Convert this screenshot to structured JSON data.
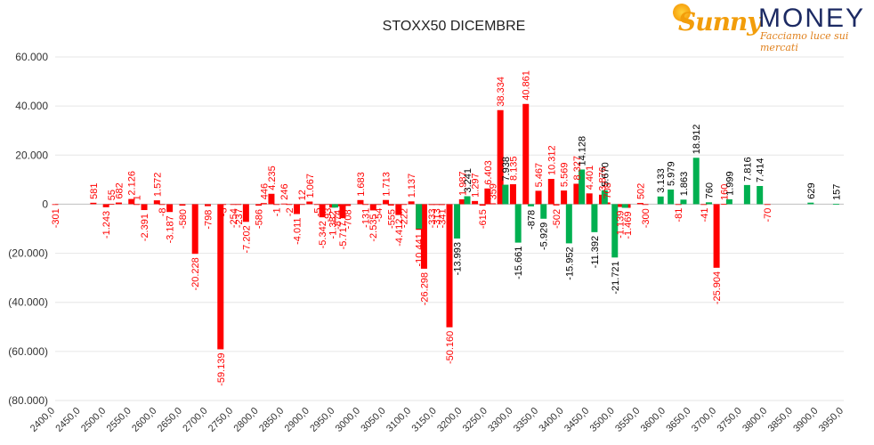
{
  "chart_data": {
    "type": "bar",
    "title": "STOXX50 DICEMBRE",
    "ylim": [
      -80000,
      60000
    ],
    "y_ticks": [
      "(80.000)",
      "(60.000)",
      "(40.000)",
      "(20.000)",
      "0",
      "20.000",
      "40.000",
      "60.000"
    ],
    "y_tick_values": [
      -80000,
      -60000,
      -40000,
      -20000,
      0,
      20000,
      40000,
      60000
    ],
    "x_tick_labels": [
      "2400,0",
      "2450,0",
      "2500,0",
      "2550,0",
      "2600,0",
      "2650,0",
      "2700,0",
      "2750,0",
      "2800,0",
      "2850,0",
      "2900,0",
      "2950,0",
      "3000,0",
      "3050,0",
      "3100,0",
      "3150,0",
      "3200,0",
      "3250,0",
      "3300,0",
      "3350,0",
      "3400,0",
      "3450,0",
      "3500,0",
      "3550,0",
      "3600,0",
      "3650,0",
      "3700,0",
      "3750,0",
      "3800,0",
      "3850,0",
      "3900,0",
      "3950,0"
    ],
    "grid": "horizontal",
    "legend": "none",
    "colors": {
      "red": "#ff0000",
      "green": "#00b050",
      "red_label": "#ff0000",
      "green_label": "#000000"
    },
    "series": [
      {
        "color": "red",
        "points": [
          {
            "x": 2400,
            "value": -301,
            "label": "-301"
          },
          {
            "x": 2475,
            "value": 581,
            "label": "581"
          },
          {
            "x": 2500,
            "value": -1243,
            "label": "-1.243"
          },
          {
            "x": 2510,
            "value": 55,
            "label": "55"
          },
          {
            "x": 2525,
            "value": 682,
            "label": "682"
          },
          {
            "x": 2550,
            "value": 2126,
            "label": "2.126"
          },
          {
            "x": 2560,
            "value": 1,
            "label": "1"
          },
          {
            "x": 2575,
            "value": -2391,
            "label": "-2.391"
          },
          {
            "x": 2600,
            "value": 1572,
            "label": "1.572"
          },
          {
            "x": 2610,
            "value": -8,
            "label": "-8"
          },
          {
            "x": 2625,
            "value": -3187,
            "label": "-3.187"
          },
          {
            "x": 2650,
            "value": -580,
            "label": "-580"
          },
          {
            "x": 2675,
            "value": -20228,
            "label": "-20.228"
          },
          {
            "x": 2700,
            "value": -798,
            "label": "-798"
          },
          {
            "x": 2725,
            "value": -59139,
            "label": "-59.139"
          },
          {
            "x": 2730,
            "value": -3,
            "label": "-3"
          },
          {
            "x": 2750,
            "value": -254,
            "label": "-254"
          },
          {
            "x": 2760,
            "value": -237,
            "label": "-237"
          },
          {
            "x": 2775,
            "value": -7202,
            "label": "-7.202"
          },
          {
            "x": 2800,
            "value": -586,
            "label": "-586"
          },
          {
            "x": 2810,
            "value": 446,
            "label": "446"
          },
          {
            "x": 2825,
            "value": 4235,
            "label": "4.235"
          },
          {
            "x": 2835,
            "value": -1,
            "label": "-1"
          },
          {
            "x": 2850,
            "value": 246,
            "label": "246"
          },
          {
            "x": 2860,
            "value": -2,
            "label": "-2"
          },
          {
            "x": 2875,
            "value": -4011,
            "label": "-4.011"
          },
          {
            "x": 2885,
            "value": 12,
            "label": "12"
          },
          {
            "x": 2900,
            "value": 1067,
            "label": "1.067"
          },
          {
            "x": 2915,
            "value": -5,
            "label": "-5"
          },
          {
            "x": 2925,
            "value": -5342,
            "label": "-5.342"
          },
          {
            "x": 2935,
            "value": -93,
            "label": "-93"
          },
          {
            "x": 2945,
            "value": -1382,
            "label": "-1.382"
          },
          {
            "x": 2955,
            "value": -874,
            "label": "-874"
          },
          {
            "x": 2965,
            "value": -5717,
            "label": "-5.717"
          },
          {
            "x": 2975,
            "value": -708,
            "label": "-708"
          },
          {
            "x": 3000,
            "value": 1683,
            "label": "1.683"
          },
          {
            "x": 3010,
            "value": -131,
            "label": "-131"
          },
          {
            "x": 3025,
            "value": -2535,
            "label": "-2.535"
          },
          {
            "x": 3035,
            "value": -54,
            "label": "-54"
          },
          {
            "x": 3050,
            "value": 1713,
            "label": "1.713"
          },
          {
            "x": 3060,
            "value": -555,
            "label": "-555"
          },
          {
            "x": 3075,
            "value": -4412,
            "label": "-4.412"
          },
          {
            "x": 3085,
            "value": -222,
            "label": "-222"
          },
          {
            "x": 3100,
            "value": 1137,
            "label": "1.137"
          },
          {
            "x": 3115,
            "value": -10441,
            "label": "-10.441"
          },
          {
            "x": 3125,
            "value": -26298,
            "label": "-26.298"
          },
          {
            "x": 3140,
            "value": -333,
            "label": "-333"
          },
          {
            "x": 3150,
            "value": -313,
            "label": "-313"
          },
          {
            "x": 3160,
            "value": -341,
            "label": "-341"
          },
          {
            "x": 3175,
            "value": -50160,
            "label": "-50.160"
          },
          {
            "x": 3200,
            "value": 1987,
            "label": "1.987"
          },
          {
            "x": 3225,
            "value": 1297,
            "label": "1.297"
          },
          {
            "x": 3240,
            "value": -615,
            "label": "-615"
          },
          {
            "x": 3250,
            "value": 6403,
            "label": "6.403"
          },
          {
            "x": 3260,
            "value": 359,
            "label": "359"
          },
          {
            "x": 3275,
            "value": 38334,
            "label": "38.334"
          },
          {
            "x": 3300,
            "value": 8135,
            "label": "8.135"
          },
          {
            "x": 3325,
            "value": 40861,
            "label": "40.861"
          },
          {
            "x": 3350,
            "value": 5467,
            "label": "5.467"
          },
          {
            "x": 3375,
            "value": 10312,
            "label": "10.312"
          },
          {
            "x": 3385,
            "value": -502,
            "label": "-502"
          },
          {
            "x": 3400,
            "value": 5569,
            "label": "5.569"
          },
          {
            "x": 3425,
            "value": 8327,
            "label": "8.327"
          },
          {
            "x": 3450,
            "value": 4401,
            "label": "4.401"
          },
          {
            "x": 3475,
            "value": 3876,
            "label": "3.876"
          },
          {
            "x": 3485,
            "value": 708,
            "label": "708"
          },
          {
            "x": 3510,
            "value": -1139,
            "label": "-1.139"
          },
          {
            "x": 3525,
            "value": -1469,
            "label": "-1.469"
          },
          {
            "x": 3550,
            "value": 502,
            "label": "502"
          },
          {
            "x": 3560,
            "value": -300,
            "label": "-300"
          },
          {
            "x": 3625,
            "value": -81,
            "label": "-81"
          },
          {
            "x": 3675,
            "value": -41,
            "label": "-41"
          },
          {
            "x": 3700,
            "value": -25904,
            "label": "-25.904"
          },
          {
            "x": 3715,
            "value": 160,
            "label": "160"
          },
          {
            "x": 3800,
            "value": -70,
            "label": "-70"
          }
        ]
      },
      {
        "color": "green",
        "points": [
          {
            "x": 2950,
            "value": -1384,
            "label": ""
          },
          {
            "x": 3115,
            "value": -10000,
            "label": ""
          },
          {
            "x": 3190,
            "value": -13993,
            "label": "-13.993"
          },
          {
            "x": 3210,
            "value": 3241,
            "label": "3.241"
          },
          {
            "x": 3285,
            "value": 7938,
            "label": "7.938"
          },
          {
            "x": 3310,
            "value": -15661,
            "label": "-15.661"
          },
          {
            "x": 3335,
            "value": -878,
            "label": "-878"
          },
          {
            "x": 3360,
            "value": -5929,
            "label": "-5.929"
          },
          {
            "x": 3410,
            "value": -15952,
            "label": "-15.952"
          },
          {
            "x": 3435,
            "value": 14128,
            "label": "14.128"
          },
          {
            "x": 3460,
            "value": -11392,
            "label": "-11.392"
          },
          {
            "x": 3480,
            "value": 5670,
            "label": "5.670"
          },
          {
            "x": 3500,
            "value": -21721,
            "label": "-21.721"
          },
          {
            "x": 3520,
            "value": -1469,
            "label": ""
          },
          {
            "x": 3590,
            "value": 3133,
            "label": "3.133"
          },
          {
            "x": 3610,
            "value": 5979,
            "label": "5.979"
          },
          {
            "x": 3635,
            "value": 1863,
            "label": "1.863"
          },
          {
            "x": 3660,
            "value": 18912,
            "label": "18.912"
          },
          {
            "x": 3685,
            "value": 760,
            "label": "760"
          },
          {
            "x": 3725,
            "value": 1999,
            "label": "1.999"
          },
          {
            "x": 3760,
            "value": 7816,
            "label": "7.816"
          },
          {
            "x": 3785,
            "value": 7414,
            "label": "7.414"
          },
          {
            "x": 3885,
            "value": 629,
            "label": "629"
          },
          {
            "x": 3935,
            "value": 157,
            "label": "157"
          }
        ]
      }
    ]
  },
  "logo": {
    "brand_first": "Sunny",
    "brand_second": "MONEY",
    "tagline": "Facciamo luce sui mercati"
  }
}
